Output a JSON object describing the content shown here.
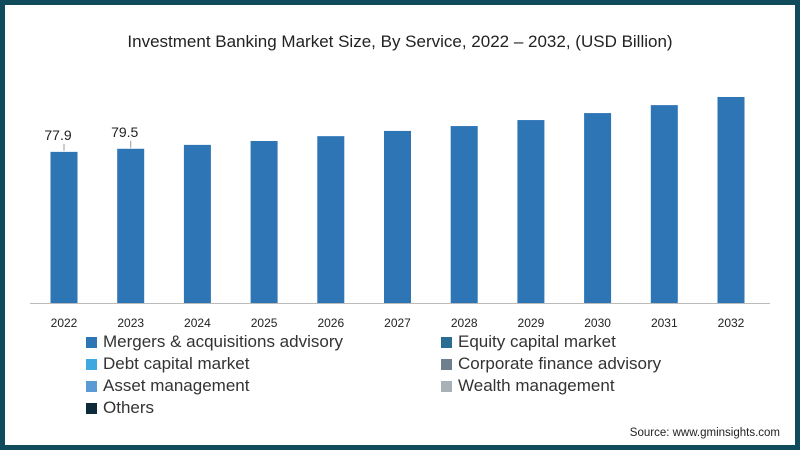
{
  "chart_data": {
    "type": "bar",
    "title": "Investment Banking Market Size, By Service, 2022 – 2032, (USD Billion)",
    "xlabel": "",
    "ylabel": "",
    "categories": [
      "2022",
      "2023",
      "2024",
      "2025",
      "2026",
      "2027",
      "2028",
      "2029",
      "2030",
      "2031",
      "2032"
    ],
    "values": [
      77.9,
      79.5,
      81.5,
      83.5,
      86.0,
      88.7,
      91.2,
      94.3,
      97.9,
      102.0,
      106.2
    ],
    "data_labels": {
      "0": "77.9",
      "1": "79.5"
    },
    "ylim": [
      0,
      110
    ],
    "grid": false,
    "bar_color": "#2e75b6",
    "legend": [
      {
        "label": "Mergers & acquisitions advisory",
        "color": "#2e75b6"
      },
      {
        "label": "Equity capital market",
        "color": "#2a6c92"
      },
      {
        "label": "Debt capital market",
        "color": "#3ea9e0"
      },
      {
        "label": "Corporate finance advisory",
        "color": "#6f7f8d"
      },
      {
        "label": "Asset management",
        "color": "#5b9bd5"
      },
      {
        "label": "Wealth management",
        "color": "#a9b1b8"
      },
      {
        "label": "Others",
        "color": "#0d2a3a"
      }
    ],
    "legend_position": "bottom"
  },
  "source": "Source: www.gminsights.com"
}
